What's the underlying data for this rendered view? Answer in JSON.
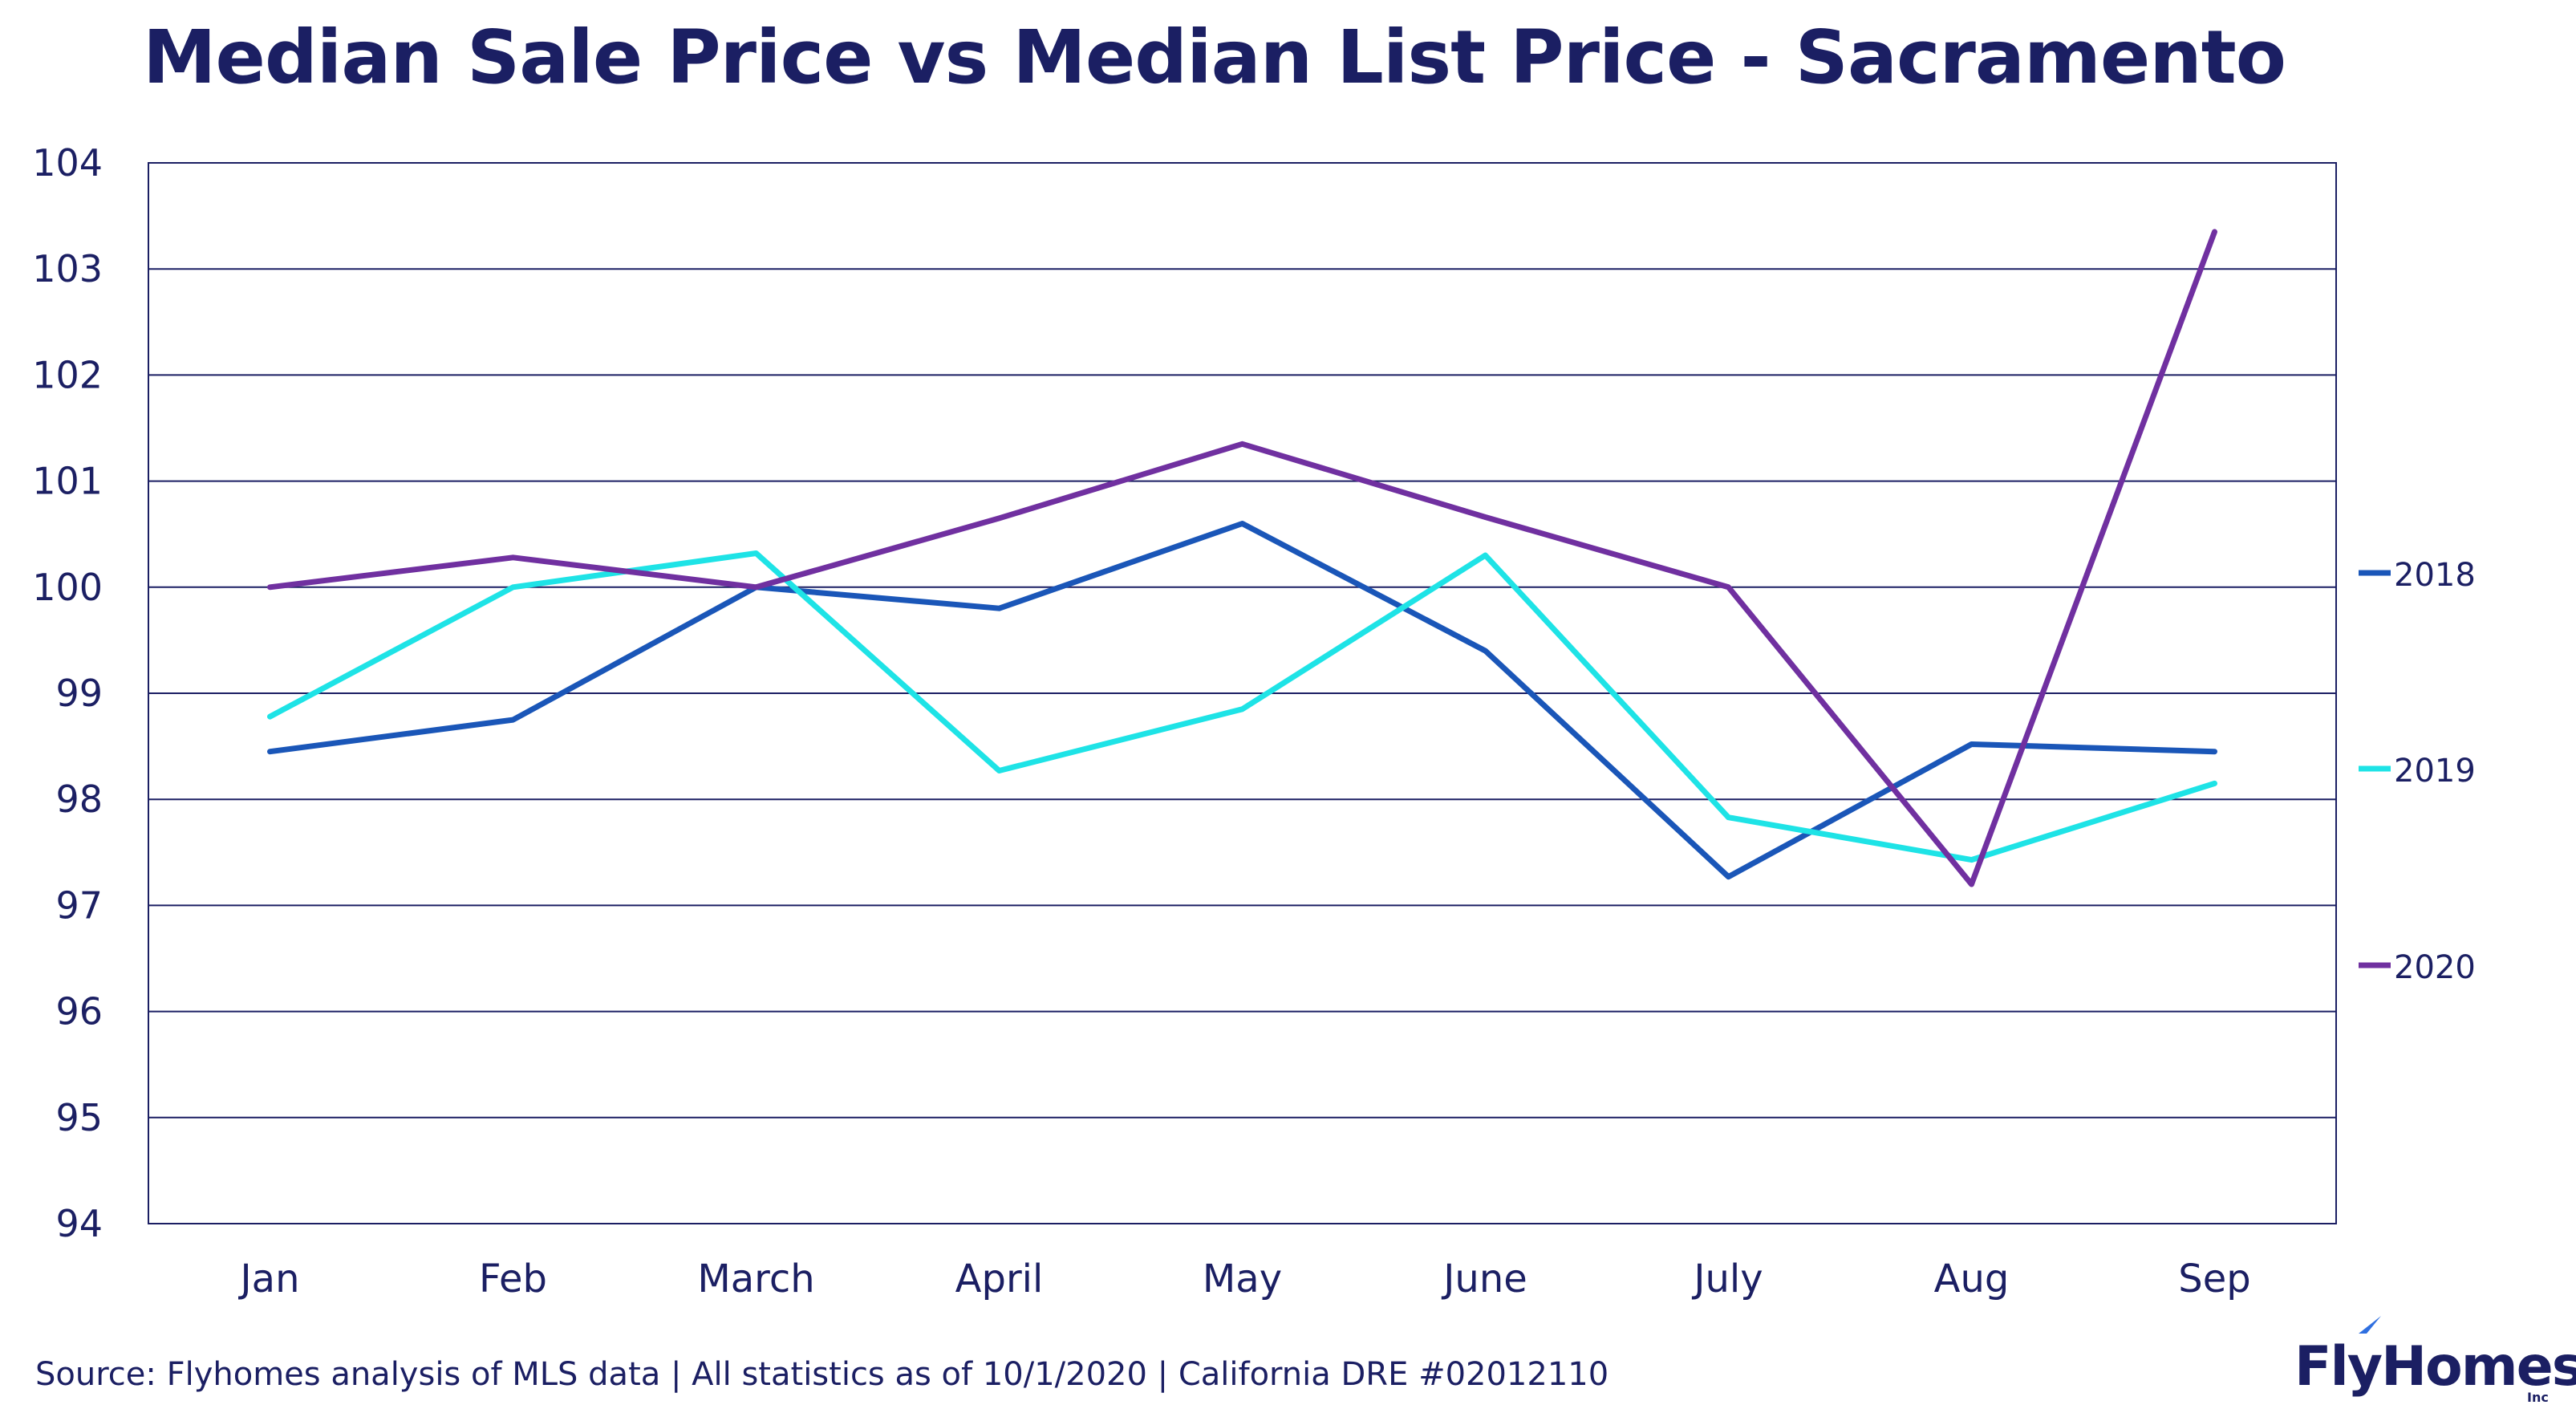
{
  "chart_data": {
    "type": "line",
    "title": "Median Sale Price vs Median List Price - Sacramento",
    "xlabel": "",
    "ylabel": "",
    "categories": [
      "Jan",
      "Feb",
      "March",
      "April",
      "May",
      "June",
      "July",
      "Aug",
      "Sep"
    ],
    "ylim": [
      94,
      104
    ],
    "yticks": [
      "94",
      "95",
      "96",
      "97",
      "98",
      "99",
      "100",
      "101",
      "102",
      "103",
      "104"
    ],
    "grid": "horizontal",
    "legend_position": "right",
    "series": [
      {
        "name": "2018",
        "color": "#1a56b8",
        "values": [
          98.45,
          98.75,
          100.0,
          99.8,
          100.6,
          99.4,
          97.27,
          98.52,
          98.45
        ]
      },
      {
        "name": "2019",
        "color": "#1ee3e6",
        "values": [
          98.78,
          100.0,
          100.32,
          98.27,
          98.85,
          100.3,
          97.83,
          97.43,
          98.15
        ]
      },
      {
        "name": "2020",
        "color": "#7030a0",
        "values": [
          100.0,
          100.28,
          100.0,
          100.65,
          101.35,
          100.66,
          100.0,
          97.2,
          103.35
        ]
      }
    ]
  },
  "footer": {
    "source": "Source: Flyhomes analysis of MLS data | All statistics as of 10/1/2020 | California DRE #02012110"
  },
  "logo": {
    "text": "FlyHomes",
    "suffix": "Inc",
    "color": "#1b1f63",
    "accent": "#2f6fe0"
  }
}
